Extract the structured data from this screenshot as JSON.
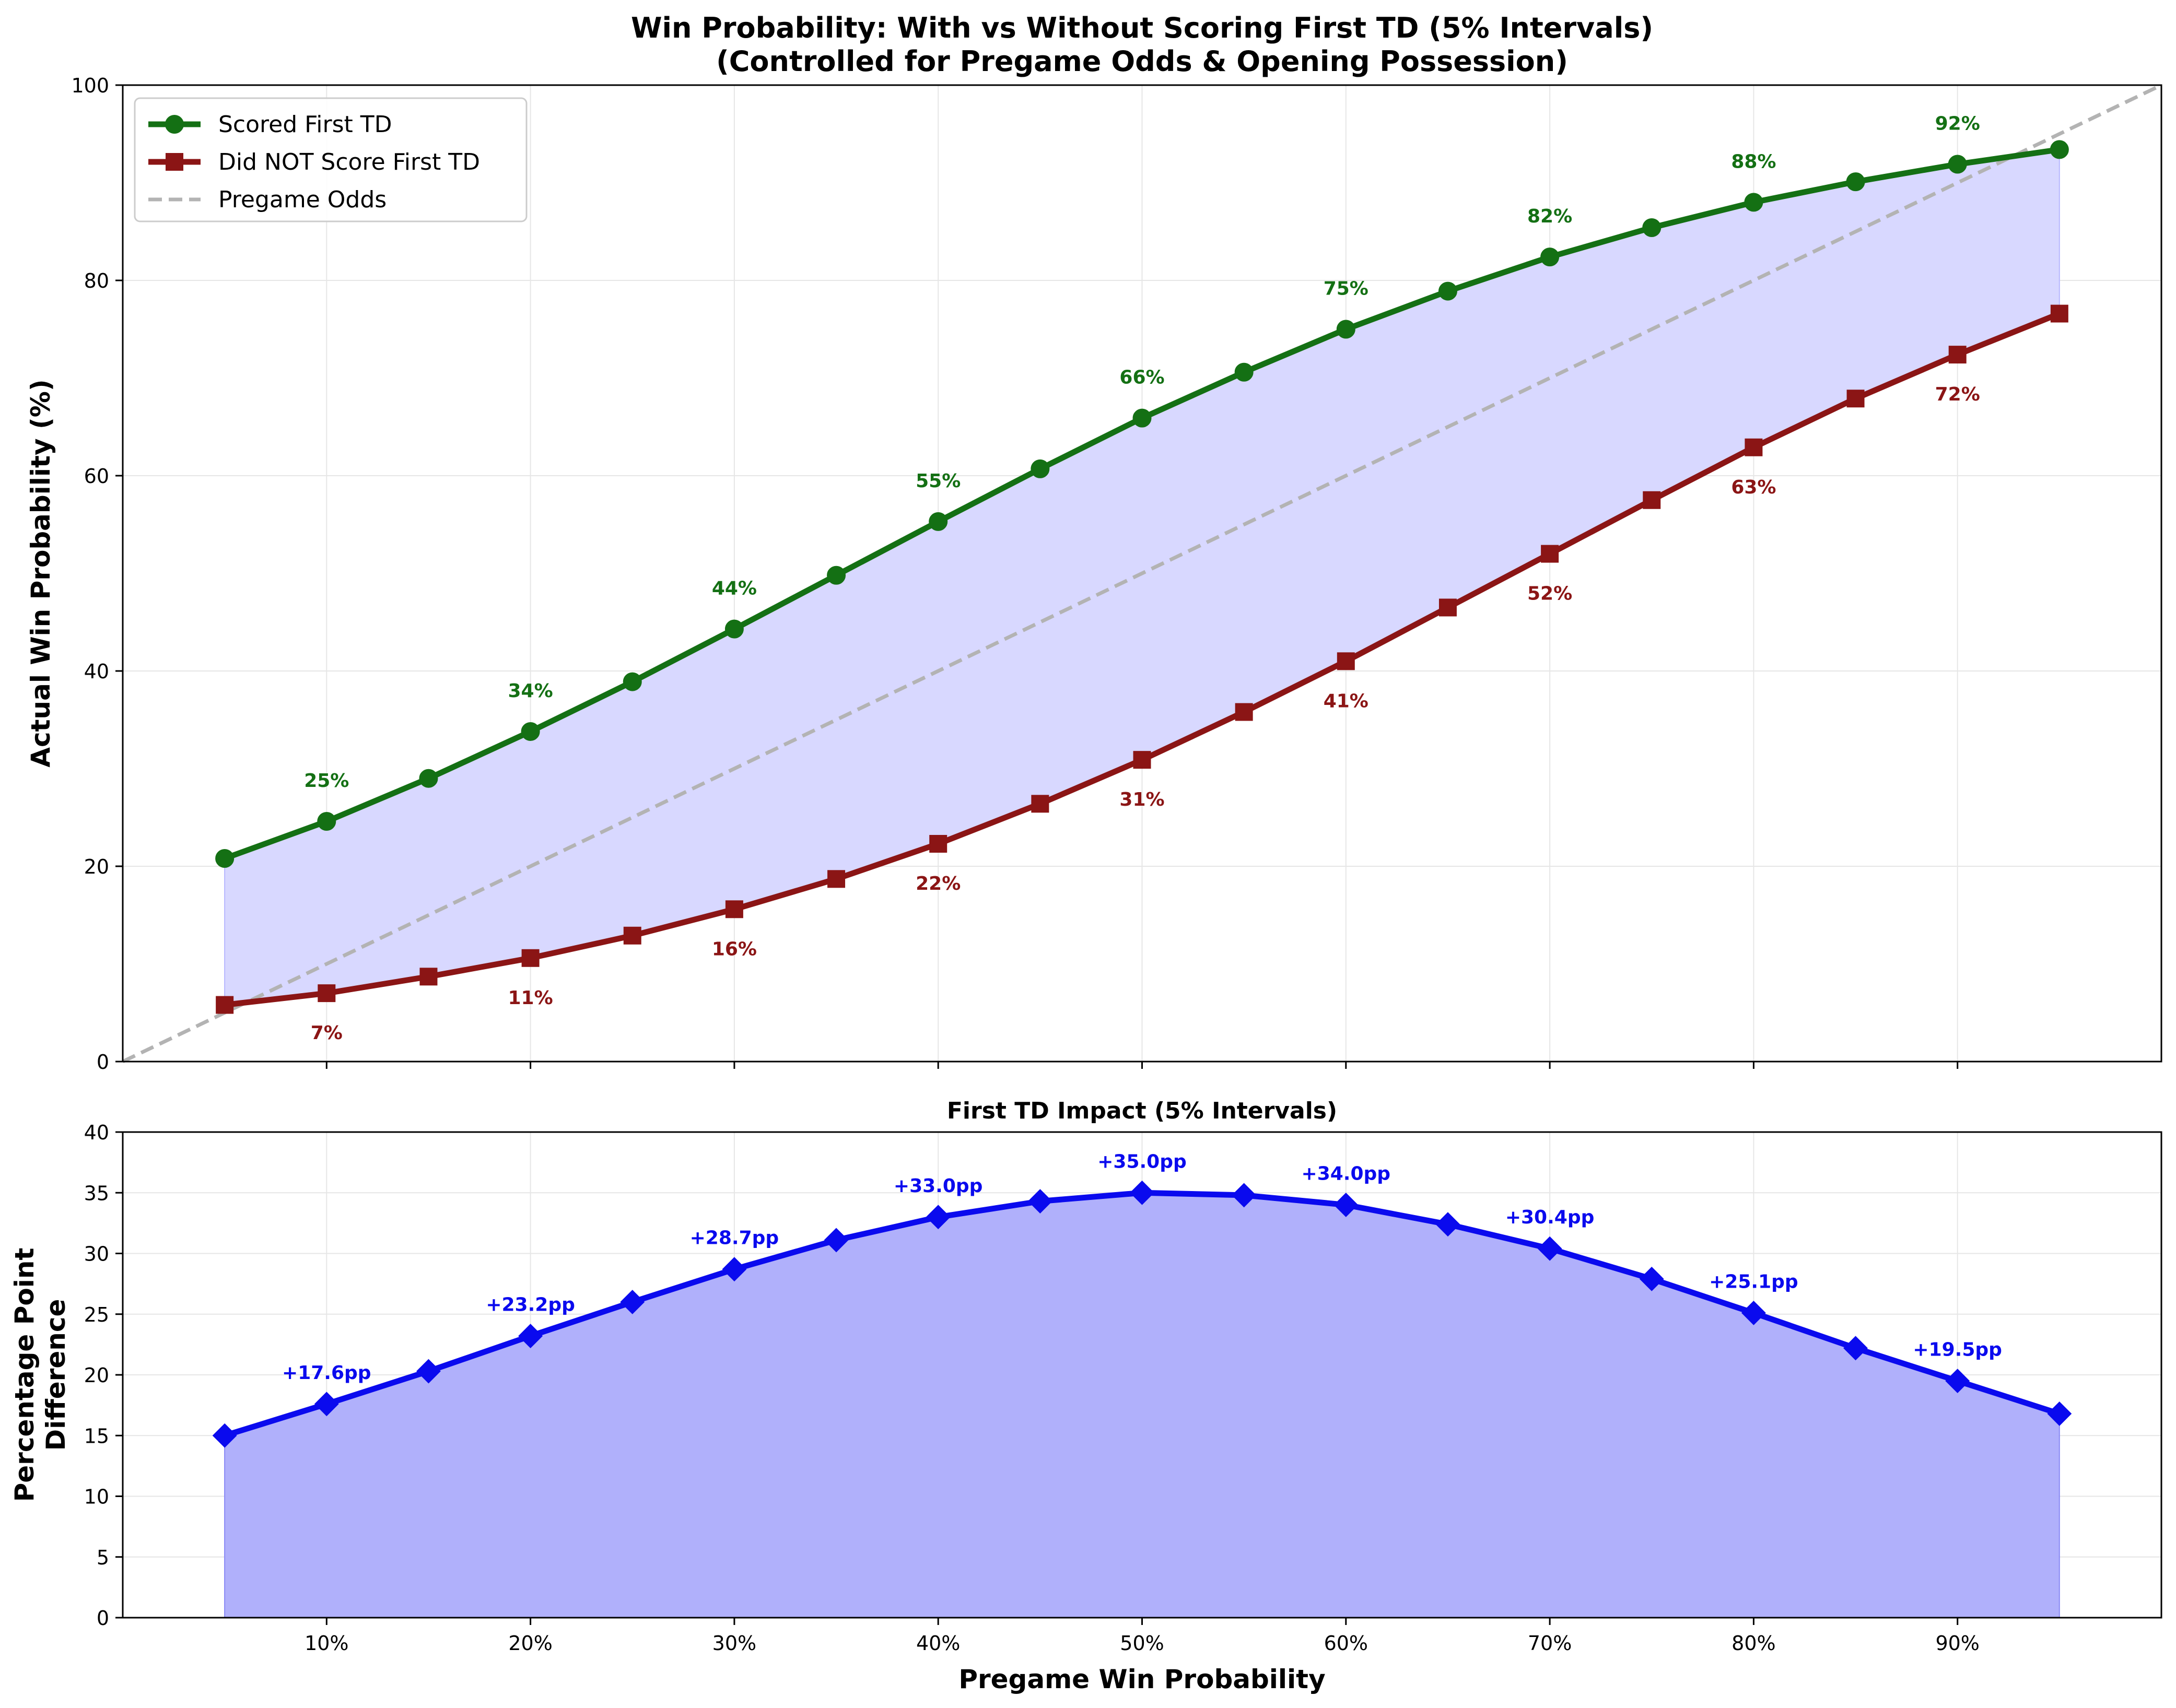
{
  "chart_data": [
    {
      "type": "line",
      "title_line1": "Win Probability: With vs Without Scoring First TD (5% Intervals)",
      "title_line2": "(Controlled for Pregame Odds & Opening Possession)",
      "xlabel": "",
      "ylabel": "Actual Win Probability (%)",
      "xlim": [
        0,
        1
      ],
      "ylim": [
        0,
        100
      ],
      "yticks": [
        0,
        20,
        40,
        60,
        80,
        100
      ],
      "grid": true,
      "legend_position": "top-left",
      "x": [
        0.05,
        0.1,
        0.15,
        0.2,
        0.25,
        0.3,
        0.35,
        0.4,
        0.45,
        0.5,
        0.55,
        0.6,
        0.65,
        0.7,
        0.75,
        0.8,
        0.85,
        0.9,
        0.95
      ],
      "series": [
        {
          "name": "Scored First TD",
          "color": "#147014",
          "marker": "circle",
          "values": [
            20.8,
            24.6,
            29.0,
            33.8,
            38.9,
            44.3,
            49.8,
            55.3,
            60.7,
            65.9,
            70.6,
            75.0,
            78.9,
            82.4,
            85.4,
            88.0,
            90.1,
            91.9,
            93.4
          ],
          "labels": [
            null,
            "25%",
            null,
            "34%",
            null,
            "44%",
            null,
            "55%",
            null,
            "66%",
            null,
            "75%",
            null,
            "82%",
            null,
            "88%",
            null,
            "92%",
            null
          ]
        },
        {
          "name": "Did NOT Score First TD",
          "color": "#8b1515",
          "marker": "square",
          "values": [
            5.8,
            7.0,
            8.7,
            10.6,
            12.9,
            15.6,
            18.7,
            22.3,
            26.4,
            30.9,
            35.8,
            41.0,
            46.5,
            52.0,
            57.5,
            62.9,
            67.9,
            72.4,
            76.6
          ],
          "labels": [
            null,
            "7%",
            null,
            "11%",
            null,
            "16%",
            null,
            "22%",
            null,
            "31%",
            null,
            "41%",
            null,
            "52%",
            null,
            "63%",
            null,
            "72%",
            null
          ]
        },
        {
          "name": "Pregame Odds",
          "color": "#b3b3b3",
          "style": "dashed",
          "x": [
            0,
            1
          ],
          "values": [
            0,
            100
          ]
        }
      ],
      "fill_color": "#d8d8ff"
    },
    {
      "type": "area",
      "title": "First TD Impact (5% Intervals)",
      "xlabel": "Pregame Win Probability",
      "ylabel_line1": "Percentage Point",
      "ylabel_line2": "Difference",
      "xlim": [
        0,
        1
      ],
      "ylim": [
        0,
        40
      ],
      "yticks": [
        0,
        5,
        10,
        15,
        20,
        25,
        30,
        35,
        40
      ],
      "xticks": [
        0.1,
        0.2,
        0.3,
        0.4,
        0.5,
        0.6,
        0.7,
        0.8,
        0.9
      ],
      "xtick_labels": [
        "10%",
        "20%",
        "30%",
        "40%",
        "50%",
        "60%",
        "70%",
        "80%",
        "90%"
      ],
      "grid": true,
      "x": [
        0.05,
        0.1,
        0.15,
        0.2,
        0.25,
        0.3,
        0.35,
        0.4,
        0.45,
        0.5,
        0.55,
        0.6,
        0.65,
        0.7,
        0.75,
        0.8,
        0.85,
        0.9,
        0.95
      ],
      "series": [
        {
          "name": "",
          "color": "#0a0aee",
          "fill_color": "#b0b0fb",
          "marker": "diamond",
          "values": [
            15.0,
            17.6,
            20.3,
            23.2,
            26.0,
            28.7,
            31.1,
            33.0,
            34.3,
            35.0,
            34.8,
            34.0,
            32.4,
            30.4,
            27.9,
            25.1,
            22.2,
            19.5,
            16.8
          ],
          "labels": [
            null,
            "+17.6pp",
            null,
            "+23.2pp",
            null,
            "+28.7pp",
            null,
            "+33.0pp",
            null,
            "+35.0pp",
            null,
            "+34.0pp",
            null,
            "+30.4pp",
            null,
            "+25.1pp",
            null,
            "+19.5pp",
            null
          ]
        }
      ]
    }
  ]
}
